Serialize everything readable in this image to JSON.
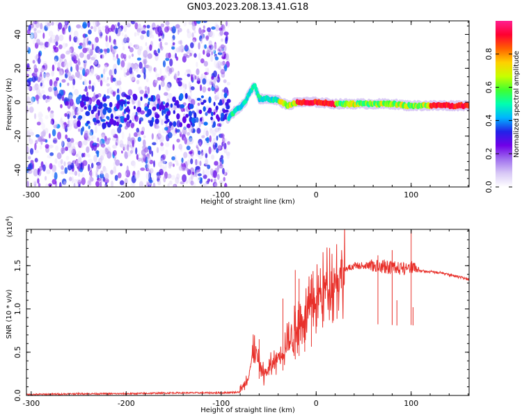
{
  "title": "GN03.2023.208.13.41.G18",
  "chart_data": [
    {
      "type": "heatmap",
      "name": "spectrogram",
      "xlabel": "Height of straight line (km)",
      "ylabel": "Frequency (Hz)",
      "xlim": [
        -305,
        161
      ],
      "ylim": [
        -50,
        48
      ],
      "xticks": [
        -300,
        -200,
        -100,
        0,
        100
      ],
      "yticks": [
        -40,
        -20,
        0,
        20,
        40
      ],
      "colorbar": {
        "label": "Normalized spectral amplitude",
        "range": [
          0,
          1
        ],
        "ticks": [
          "0.0",
          "0.2",
          "0.4",
          "0.6",
          "0.8"
        ],
        "colors": [
          "#ffffff",
          "#d8c8f6",
          "#a070ee",
          "#7000e8",
          "#2222e8",
          "#00b4ff",
          "#00ffb0",
          "#40ff30",
          "#c8ff00",
          "#ffd000",
          "#ff6000",
          "#ff0030",
          "#ff2090"
        ]
      },
      "noise_region": [
        -305,
        -92
      ],
      "signal_trace": [
        [
          -92,
          -9
        ],
        [
          -85,
          -5
        ],
        [
          -80,
          -3
        ],
        [
          -75,
          0
        ],
        [
          -70,
          6
        ],
        [
          -65,
          10
        ],
        [
          -60,
          2
        ],
        [
          -50,
          2
        ],
        [
          -40,
          1
        ],
        [
          -30,
          -2
        ],
        [
          -20,
          0
        ],
        [
          0,
          0
        ],
        [
          20,
          -1
        ],
        [
          50,
          -1
        ],
        [
          80,
          -1
        ],
        [
          95,
          -2
        ],
        [
          120,
          -2
        ],
        [
          161,
          -2
        ]
      ]
    },
    {
      "type": "line",
      "name": "snr",
      "xlabel": "Height of straight line (km)",
      "ylabel": "SNR (10 * v/v)",
      "multiplier": "(x10",
      "exponent": "4",
      "multiplier_close": ")",
      "xlim": [
        -305,
        161
      ],
      "ylim": [
        0,
        1.92
      ],
      "xticks": [
        -300,
        -200,
        -100,
        0,
        100
      ],
      "yticks": [
        "0.0",
        "0.5",
        "1.0",
        "1.5"
      ],
      "color": "#e8302a",
      "baseline": [
        [
          -305,
          0.01
        ],
        [
          -250,
          0.02
        ],
        [
          -200,
          0.02
        ],
        [
          -150,
          0.03
        ],
        [
          -100,
          0.03
        ],
        [
          -80,
          0.04
        ]
      ],
      "envelope": [
        [
          -80,
          0.05
        ],
        [
          -72,
          0.2
        ],
        [
          -65,
          0.55
        ],
        [
          -60,
          0.35
        ],
        [
          -55,
          0.25
        ],
        [
          -50,
          0.3
        ],
        [
          -40,
          0.45
        ],
        [
          -30,
          0.6
        ],
        [
          -20,
          0.8
        ],
        [
          -10,
          0.95
        ],
        [
          0,
          1.1
        ],
        [
          10,
          1.25
        ],
        [
          20,
          1.35
        ],
        [
          30,
          1.45
        ],
        [
          40,
          1.5
        ],
        [
          60,
          1.5
        ],
        [
          80,
          1.48
        ],
        [
          95,
          1.45
        ],
        [
          100,
          1.48
        ],
        [
          110,
          1.44
        ],
        [
          130,
          1.42
        ],
        [
          150,
          1.37
        ],
        [
          161,
          1.34
        ]
      ],
      "spikes": [
        [
          -60,
          0.65
        ],
        [
          -35,
          1.12
        ],
        [
          -22,
          1.45
        ],
        [
          -18,
          1.35
        ],
        [
          -12,
          0.95
        ],
        [
          -5,
          1.4
        ],
        [
          65,
          1.62
        ],
        [
          80,
          1.68
        ],
        [
          85,
          1.1
        ],
        [
          100,
          1.9
        ],
        [
          102,
          1.02
        ]
      ]
    }
  ]
}
